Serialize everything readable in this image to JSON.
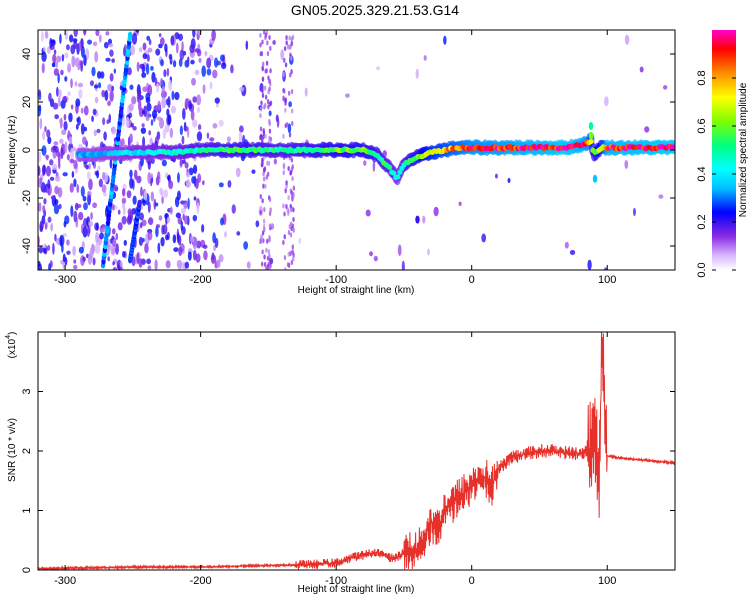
{
  "title": "GN05.2025.329.21.53.G14",
  "chart_data": [
    {
      "type": "heatmap",
      "xlabel": "Height of straight line (km)",
      "ylabel": "Frequency (Hz)",
      "xlim": [
        -320,
        150
      ],
      "ylim": [
        -50,
        50
      ],
      "x_ticks": [
        -300,
        -200,
        -100,
        0,
        100
      ],
      "y_ticks": [
        -40,
        -20,
        0,
        20,
        40
      ],
      "colorbar": {
        "label": "Normalized spectral amplitude",
        "range": [
          0,
          1
        ],
        "ticks": [
          0.0,
          0.2,
          0.4,
          0.6,
          0.8
        ],
        "tick_labels": [
          "0.0",
          "0.2",
          "0.4",
          "0.6",
          "0.8"
        ]
      },
      "ridge": {
        "x": [
          -280,
          -250,
          -220,
          -200,
          -180,
          -160,
          -140,
          -120,
          -100,
          -90,
          -80,
          -70,
          -60,
          -55,
          -50,
          -45,
          -40,
          -30,
          -20,
          -10,
          0,
          20,
          40,
          60,
          70,
          80,
          85,
          88,
          90,
          95,
          100,
          120,
          150
        ],
        "freq": [
          -2,
          -1,
          -1,
          0,
          0,
          0,
          0,
          0,
          0,
          0,
          0,
          -2,
          -8,
          -12,
          -6,
          -4,
          -3,
          -1,
          0,
          1,
          1,
          1,
          1,
          1,
          1,
          2,
          3,
          4,
          -2,
          1,
          1,
          1,
          1
        ],
        "amplitude": [
          0.35,
          0.4,
          0.45,
          0.5,
          0.55,
          0.55,
          0.5,
          0.55,
          0.6,
          0.6,
          0.6,
          0.55,
          0.5,
          0.45,
          0.5,
          0.55,
          0.6,
          0.75,
          0.8,
          0.85,
          0.9,
          0.92,
          0.95,
          0.97,
          1.0,
          0.95,
          0.9,
          0.8,
          0.6,
          0.7,
          0.95,
          0.98,
          1.0
        ]
      },
      "streaks": [
        {
          "x_start": -272,
          "x_end": -252,
          "freq_start": -48,
          "freq_end": 48,
          "amplitude": 0.3
        },
        {
          "x_start": -252,
          "x_end": -245,
          "freq_start": -46,
          "freq_end": -22,
          "amplitude": 0.25
        }
      ]
    },
    {
      "type": "line",
      "xlabel": "Height of straight line (km)",
      "ylabel": "SNR (10 * v/v)",
      "y_multiplier": "(x10",
      "y_multiplier_exp": "4",
      "y_multiplier_close": ")",
      "xlim": [
        -320,
        150
      ],
      "ylim": [
        0,
        4
      ],
      "x_ticks": [
        -300,
        -200,
        -100,
        0,
        100
      ],
      "y_ticks": [
        0,
        1,
        2,
        3
      ],
      "color": "#e8302a",
      "series": [
        {
          "x": [
            -320,
            -300,
            -250,
            -200,
            -180,
            -160,
            -140,
            -120,
            -100,
            -90,
            -80,
            -70,
            -60,
            -55,
            -50,
            -45,
            -40,
            -35,
            -30,
            -25,
            -20,
            -15,
            -10,
            -5,
            0,
            5,
            10,
            15,
            20,
            30,
            40,
            50,
            60,
            70,
            80,
            85,
            88,
            90,
            92,
            94,
            96,
            98,
            100,
            105,
            110,
            120,
            130,
            140,
            150
          ],
          "y": [
            0.02,
            0.03,
            0.05,
            0.05,
            0.06,
            0.07,
            0.08,
            0.09,
            0.12,
            0.2,
            0.25,
            0.3,
            0.2,
            0.22,
            0.3,
            0.35,
            0.3,
            0.55,
            0.8,
            0.7,
            1.0,
            1.1,
            1.2,
            1.3,
            1.4,
            1.5,
            1.55,
            1.4,
            1.7,
            1.9,
            1.95,
            2.0,
            2.0,
            1.97,
            1.95,
            2.0,
            2.05,
            2.05,
            2.3,
            1.2,
            3.9,
            3.0,
            1.92,
            1.9,
            1.88,
            1.86,
            1.84,
            1.82,
            1.8
          ]
        }
      ],
      "noise_amplitude": [
        {
          "x_from": -320,
          "x_to": -130,
          "amp": 0.02
        },
        {
          "x_from": -130,
          "x_to": -50,
          "amp": 0.08
        },
        {
          "x_from": -50,
          "x_to": 20,
          "amp": 0.35
        },
        {
          "x_from": 20,
          "x_to": 85,
          "amp": 0.12
        },
        {
          "x_from": 85,
          "x_to": 100,
          "amp": 0.9
        },
        {
          "x_from": 100,
          "x_to": 150,
          "amp": 0.02
        }
      ]
    }
  ]
}
